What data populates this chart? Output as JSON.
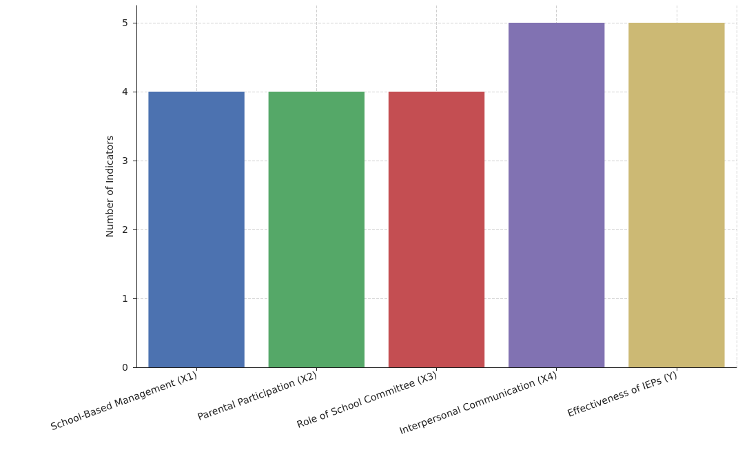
{
  "chart_data": {
    "type": "bar",
    "ylabel": "Number of Indicators",
    "categories": [
      "School-Based Management (X1)",
      "Parental Participation (X2)",
      "Role of School Committee (X3)",
      "Interpersonal Communication (X4)",
      "Effectiveness of IEPs (Y)"
    ],
    "values": [
      4,
      4,
      4,
      5,
      5
    ],
    "colors": [
      "#4c72b0",
      "#55a868",
      "#c44e52",
      "#8172b2",
      "#ccb974"
    ],
    "ylim": [
      0,
      5.25
    ],
    "yticks": [
      0,
      1,
      2,
      3,
      4,
      5
    ],
    "grid": true
  }
}
